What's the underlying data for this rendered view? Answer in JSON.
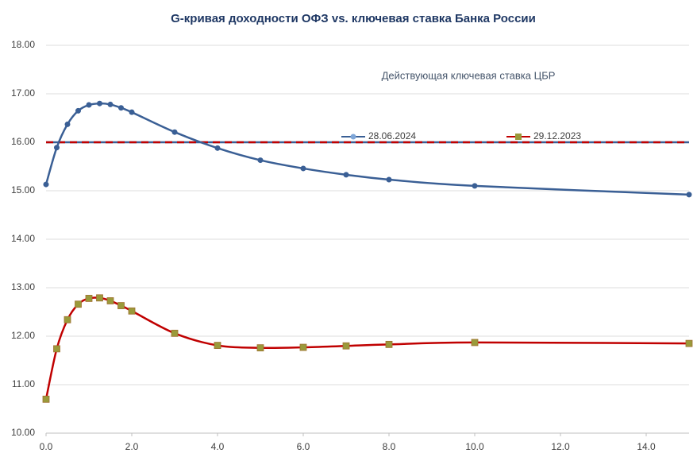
{
  "chart_data": {
    "type": "line",
    "title": "G-кривая доходности ОФЗ vs. ключевая ставка Банка России",
    "annotation": "Действующая ключевая ставка ЦБР",
    "x": [
      0,
      0.25,
      0.5,
      0.75,
      1,
      1.25,
      1.5,
      1.75,
      2,
      3,
      4,
      5,
      6,
      7,
      8,
      10,
      15
    ],
    "series": [
      {
        "name": "28.06.2024",
        "color": "#3a5f95",
        "marker": "circle",
        "marker_color": "#3a5f95",
        "values": [
          15.13,
          15.89,
          16.37,
          16.65,
          16.77,
          16.8,
          16.78,
          16.71,
          16.62,
          16.21,
          15.88,
          15.63,
          15.46,
          15.33,
          15.23,
          15.1,
          14.92
        ]
      },
      {
        "name": "29.12.2023",
        "color": "#c00000",
        "marker": "square",
        "marker_color": "#9a9a3a",
        "values": [
          10.7,
          11.74,
          12.34,
          12.66,
          12.78,
          12.79,
          12.73,
          12.63,
          12.52,
          12.06,
          11.81,
          11.76,
          11.77,
          11.8,
          11.83,
          11.87,
          11.85
        ]
      }
    ],
    "reference_lines": [
      {
        "value": 16,
        "color": "#3a5f95",
        "dashed": false
      },
      {
        "value": 16,
        "color": "#c00000",
        "dashed": true
      }
    ],
    "xlim": [
      0,
      15
    ],
    "xticks": [
      {
        "value": 0,
        "label": "0.0"
      },
      {
        "value": 2,
        "label": "2.0"
      },
      {
        "value": 4,
        "label": "4.0"
      },
      {
        "value": 6,
        "label": "6.0"
      },
      {
        "value": 8,
        "label": "8.0"
      },
      {
        "value": 10,
        "label": "10.0"
      },
      {
        "value": 12,
        "label": "12.0"
      },
      {
        "value": 14,
        "label": "14.0"
      }
    ],
    "ylim": [
      10,
      18
    ],
    "yticks": [
      {
        "value": 10,
        "label": "10.00"
      },
      {
        "value": 11,
        "label": "11.00"
      },
      {
        "value": 12,
        "label": "12.00"
      },
      {
        "value": 13,
        "label": "13.00"
      },
      {
        "value": 14,
        "label": "14.00"
      },
      {
        "value": 15,
        "label": "15.00"
      },
      {
        "value": 16,
        "label": "16.00"
      },
      {
        "value": 17,
        "label": "17.00"
      },
      {
        "value": 18,
        "label": "18.00"
      }
    ],
    "grid": true
  }
}
